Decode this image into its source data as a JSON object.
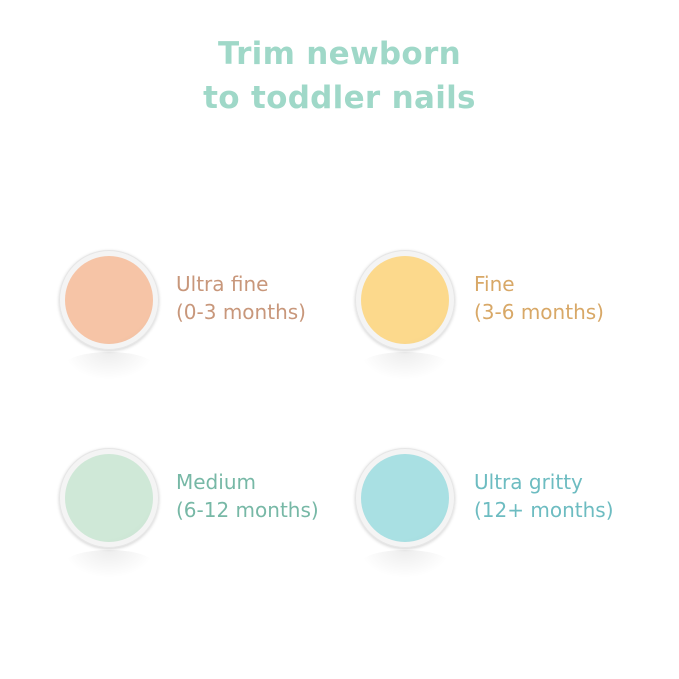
{
  "title": {
    "line1": "Trim newborn",
    "line2": "to toddler nails"
  },
  "title_color": "#9fd8c8",
  "items": [
    {
      "name": "Ultra fine",
      "age": "(0-3 months)",
      "pad_color": "#f6c4a6",
      "text_color": "#c8977b"
    },
    {
      "name": "Fine",
      "age": "(3-6 months)",
      "pad_color": "#fcd98c",
      "text_color": "#d8a867"
    },
    {
      "name": "Medium",
      "age": "(6-12 months)",
      "pad_color": "#cfe8d7",
      "text_color": "#77b8a6"
    },
    {
      "name": "Ultra gritty",
      "age": "(12+ months)",
      "pad_color": "#a9e0e3",
      "text_color": "#6dbcc1"
    }
  ]
}
